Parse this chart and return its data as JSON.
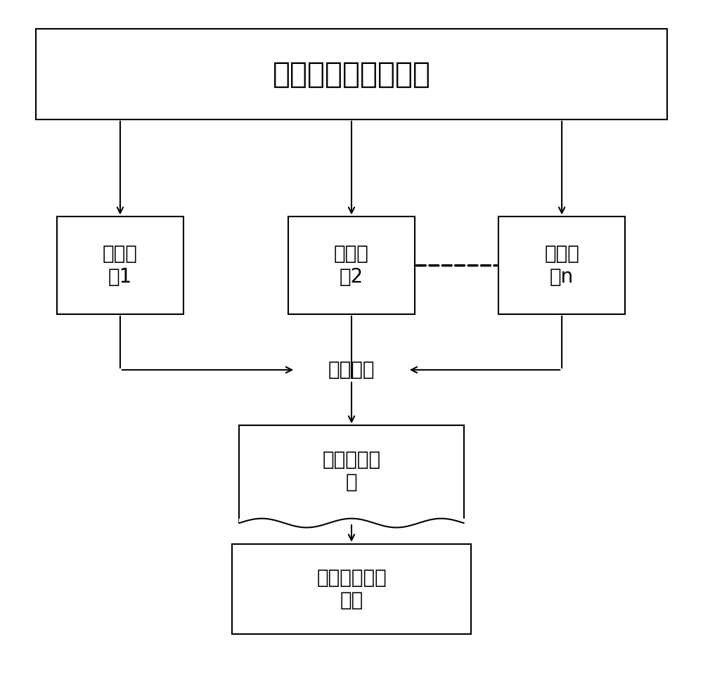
{
  "title": "多线程任务执行完毕",
  "box1_label": "匹配结\n果1",
  "box2_label": "匹配结\n果2",
  "box3_label": "匹配结\n果n",
  "merge_label": "归档合并",
  "final_label": "最终匹配结\n果",
  "stats_label": "统计关键匹配\n信息",
  "bg_color": "#ffffff",
  "box_color": "#ffffff",
  "line_color": "#000000",
  "font_size": 20,
  "title_font_size": 30
}
